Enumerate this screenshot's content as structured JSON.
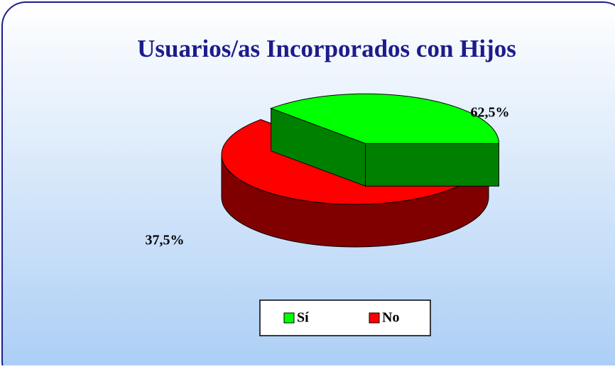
{
  "chart_data": {
    "type": "pie3d",
    "title": "Usuarios/as Incorporados con Hijos",
    "categories": [
      "Sí",
      "No"
    ],
    "values": [
      37.5,
      62.5
    ],
    "value_labels": [
      "37,5%",
      "62,5%"
    ],
    "colors": [
      "#00ff00",
      "#ff0000"
    ],
    "side_colors": [
      "#008000",
      "#800000"
    ],
    "legend": "bottom"
  }
}
